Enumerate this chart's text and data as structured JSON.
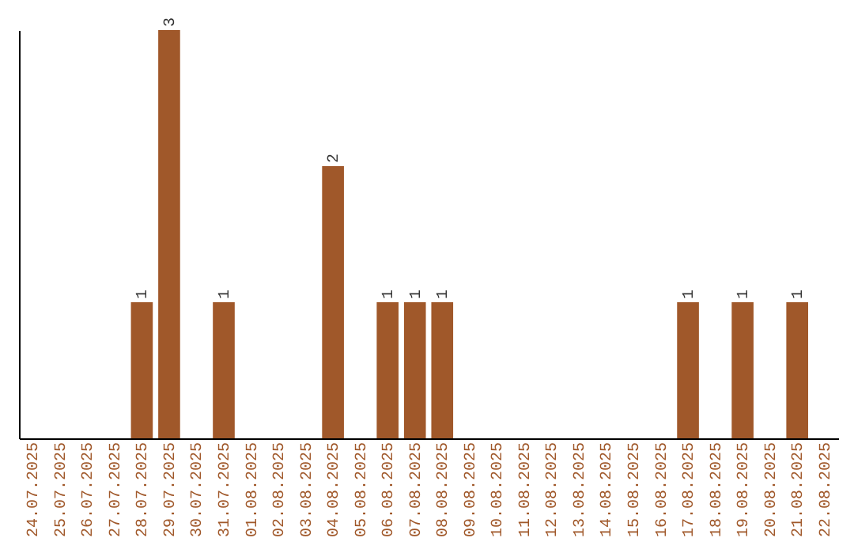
{
  "chart_data": {
    "type": "bar",
    "categories": [
      "24.07.2025",
      "25.07.2025",
      "26.07.2025",
      "27.07.2025",
      "28.07.2025",
      "29.07.2025",
      "30.07.2025",
      "31.07.2025",
      "01.08.2025",
      "02.08.2025",
      "03.08.2025",
      "04.08.2025",
      "05.08.2025",
      "06.08.2025",
      "07.08.2025",
      "08.08.2025",
      "09.08.2025",
      "10.08.2025",
      "11.08.2025",
      "12.08.2025",
      "13.08.2025",
      "14.08.2025",
      "15.08.2025",
      "16.08.2025",
      "17.08.2025",
      "18.08.2025",
      "19.08.2025",
      "20.08.2025",
      "21.08.2025",
      "22.08.2025"
    ],
    "values": [
      0,
      0,
      0,
      0,
      1,
      3,
      0,
      1,
      0,
      0,
      0,
      2,
      0,
      1,
      1,
      1,
      0,
      0,
      0,
      0,
      0,
      0,
      0,
      0,
      1,
      0,
      1,
      0,
      1,
      0
    ],
    "value_labels": [
      null,
      null,
      null,
      null,
      "1",
      "3",
      null,
      "1",
      null,
      null,
      null,
      "2",
      null,
      "1",
      "1",
      "1",
      null,
      null,
      null,
      null,
      null,
      null,
      null,
      null,
      "1",
      null,
      "1",
      null,
      "1",
      null
    ],
    "color": "#a0582a"
  }
}
